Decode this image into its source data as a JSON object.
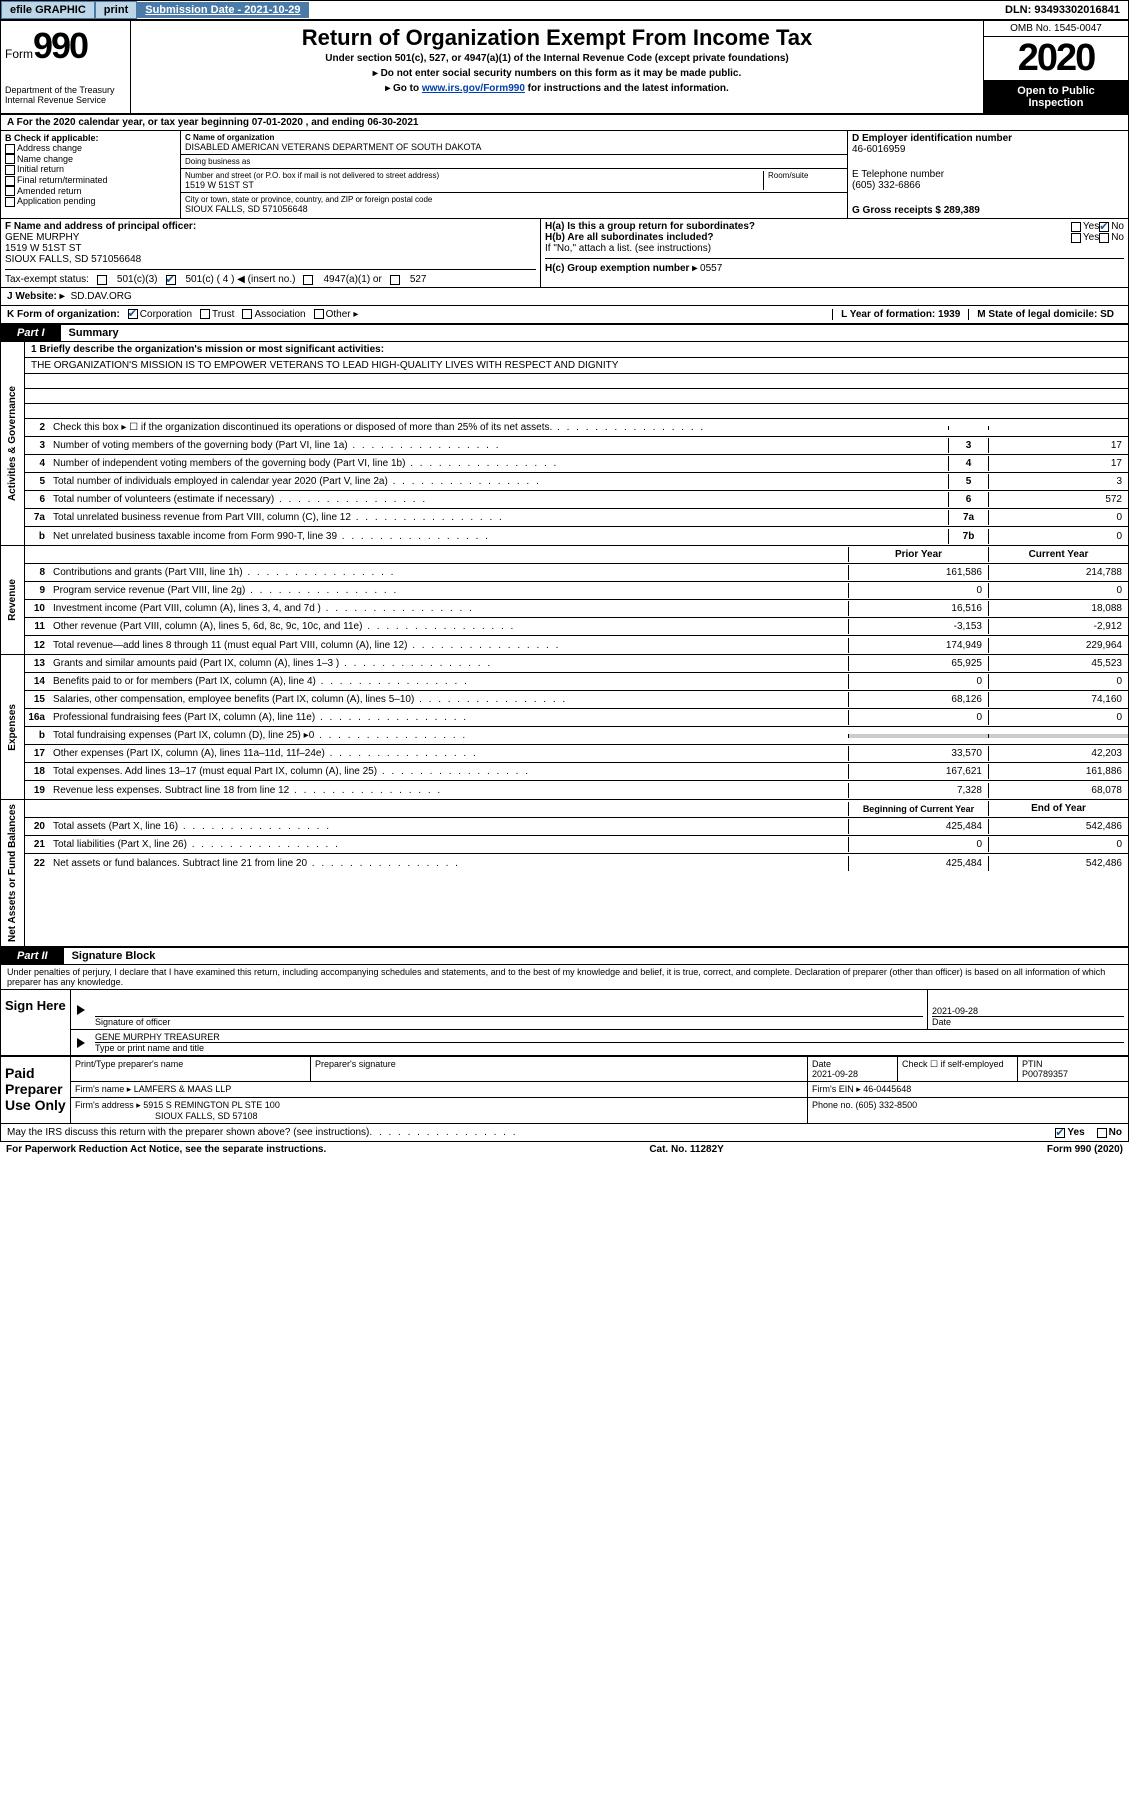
{
  "topbar": {
    "efile_label": "efile GRAPHIC",
    "print_label": "print",
    "submission_label": "Submission Date - 2021-10-29",
    "dln_label": "DLN: 93493302016841"
  },
  "header": {
    "form_word": "Form",
    "form_number": "990",
    "dept1": "Department of the Treasury",
    "dept2": "Internal Revenue Service",
    "main_title": "Return of Organization Exempt From Income Tax",
    "subtitle": "Under section 501(c), 527, or 4947(a)(1) of the Internal Revenue Code (except private foundations)",
    "notice1": "▸ Do not enter social security numbers on this form as it may be made public.",
    "notice2_prefix": "▸ Go to ",
    "notice2_link": "www.irs.gov/Form990",
    "notice2_suffix": " for instructions and the latest information.",
    "omb": "OMB No. 1545-0047",
    "year": "2020",
    "open_public1": "Open to Public",
    "open_public2": "Inspection"
  },
  "period": {
    "text": "A For the 2020 calendar year, or tax year beginning 07-01-2020    , and ending 06-30-2021"
  },
  "block_b": {
    "label": "B Check if applicable:",
    "items": [
      "Address change",
      "Name change",
      "Initial return",
      "Final return/terminated",
      "Amended return",
      "Application pending"
    ]
  },
  "block_c": {
    "name_label": "C Name of organization",
    "name_value": "DISABLED AMERICAN VETERANS DEPARTMENT OF SOUTH DAKOTA",
    "dba_label": "Doing business as",
    "street_label": "Number and street (or P.O. box if mail is not delivered to street address)",
    "street_value": "1519 W 51ST ST",
    "room_label": "Room/suite",
    "city_label": "City or town, state or province, country, and ZIP or foreign postal code",
    "city_value": "SIOUX FALLS, SD  571056648"
  },
  "block_d": {
    "ein_label": "D Employer identification number",
    "ein_value": "46-6016959",
    "phone_label": "E Telephone number",
    "phone_value": "(605) 332-6866",
    "gross_label": "G Gross receipts $ 289,389"
  },
  "block_f": {
    "label": "F  Name and address of principal officer:",
    "name": "GENE MURPHY",
    "addr1": "1519 W 51ST ST",
    "addr2": "SIOUX FALLS, SD  571056648"
  },
  "block_h": {
    "ha_label": "H(a)  Is this a group return for subordinates?",
    "hb_label": "H(b)  Are all subordinates included?",
    "hb_note": "If \"No,\" attach a list. (see instructions)",
    "hc_label": "H(c)  Group exemption number ▸",
    "hc_value": "0557"
  },
  "tax_status": {
    "label": "Tax-exempt status:",
    "opt1": "501(c)(3)",
    "opt2": "501(c) ( 4 ) ◀ (insert no.)",
    "opt3": "4947(a)(1) or",
    "opt4": "527"
  },
  "line_j": {
    "label": "J    Website: ▸",
    "value": "SD.DAV.ORG"
  },
  "line_k": {
    "label": "K Form of organization:",
    "opts": [
      "Corporation",
      "Trust",
      "Association",
      "Other ▸"
    ],
    "l_label": "L Year of formation: 1939",
    "m_label": "M State of legal domicile: SD"
  },
  "part1": {
    "label": "Part I",
    "title": "Summary"
  },
  "mission": {
    "q1": "1  Briefly describe the organization's mission or most significant activities:",
    "text": "THE ORGANIZATION'S MISSION IS TO EMPOWER VETERANS TO LEAD HIGH-QUALITY LIVES WITH RESPECT AND DIGNITY"
  },
  "gov_rows": [
    {
      "num": "2",
      "desc": "Check this box ▸ ☐  if the organization discontinued its operations or disposed of more than 25% of its net assets.",
      "box": "",
      "val": ""
    },
    {
      "num": "3",
      "desc": "Number of voting members of the governing body (Part VI, line 1a)",
      "box": "3",
      "val": "17"
    },
    {
      "num": "4",
      "desc": "Number of independent voting members of the governing body (Part VI, line 1b)",
      "box": "4",
      "val": "17"
    },
    {
      "num": "5",
      "desc": "Total number of individuals employed in calendar year 2020 (Part V, line 2a)",
      "box": "5",
      "val": "3"
    },
    {
      "num": "6",
      "desc": "Total number of volunteers (estimate if necessary)",
      "box": "6",
      "val": "572"
    },
    {
      "num": "7a",
      "desc": "Total unrelated business revenue from Part VIII, column (C), line 12",
      "box": "7a",
      "val": "0"
    },
    {
      "num": "b",
      "desc": "Net unrelated business taxable income from Form 990-T, line 39",
      "box": "7b",
      "val": "0"
    }
  ],
  "rev_header": {
    "prior": "Prior Year",
    "current": "Current Year"
  },
  "rev_rows": [
    {
      "num": "8",
      "desc": "Contributions and grants (Part VIII, line 1h)",
      "prior": "161,586",
      "current": "214,788"
    },
    {
      "num": "9",
      "desc": "Program service revenue (Part VIII, line 2g)",
      "prior": "0",
      "current": "0"
    },
    {
      "num": "10",
      "desc": "Investment income (Part VIII, column (A), lines 3, 4, and 7d )",
      "prior": "16,516",
      "current": "18,088"
    },
    {
      "num": "11",
      "desc": "Other revenue (Part VIII, column (A), lines 5, 6d, 8c, 9c, 10c, and 11e)",
      "prior": "-3,153",
      "current": "-2,912"
    },
    {
      "num": "12",
      "desc": "Total revenue—add lines 8 through 11 (must equal Part VIII, column (A), line 12)",
      "prior": "174,949",
      "current": "229,964"
    }
  ],
  "exp_rows": [
    {
      "num": "13",
      "desc": "Grants and similar amounts paid (Part IX, column (A), lines 1–3 )",
      "prior": "65,925",
      "current": "45,523"
    },
    {
      "num": "14",
      "desc": "Benefits paid to or for members (Part IX, column (A), line 4)",
      "prior": "0",
      "current": "0"
    },
    {
      "num": "15",
      "desc": "Salaries, other compensation, employee benefits (Part IX, column (A), lines 5–10)",
      "prior": "68,126",
      "current": "74,160"
    },
    {
      "num": "16a",
      "desc": "Professional fundraising fees (Part IX, column (A), line 11e)",
      "prior": "0",
      "current": "0"
    },
    {
      "num": "b",
      "desc": "Total fundraising expenses (Part IX, column (D), line 25) ▸0",
      "prior": "",
      "current": "",
      "grey": true
    },
    {
      "num": "17",
      "desc": "Other expenses (Part IX, column (A), lines 11a–11d, 11f–24e)",
      "prior": "33,570",
      "current": "42,203"
    },
    {
      "num": "18",
      "desc": "Total expenses. Add lines 13–17 (must equal Part IX, column (A), line 25)",
      "prior": "167,621",
      "current": "161,886"
    },
    {
      "num": "19",
      "desc": "Revenue less expenses. Subtract line 18 from line 12",
      "prior": "7,328",
      "current": "68,078"
    }
  ],
  "net_header": {
    "prior": "Beginning of Current Year",
    "current": "End of Year"
  },
  "net_rows": [
    {
      "num": "20",
      "desc": "Total assets (Part X, line 16)",
      "prior": "425,484",
      "current": "542,486"
    },
    {
      "num": "21",
      "desc": "Total liabilities (Part X, line 26)",
      "prior": "0",
      "current": "0"
    },
    {
      "num": "22",
      "desc": "Net assets or fund balances. Subtract line 21 from line 20",
      "prior": "425,484",
      "current": "542,486"
    }
  ],
  "part2": {
    "label": "Part II",
    "title": "Signature Block",
    "penalty": "Under penalties of perjury, I declare that I have examined this return, including accompanying schedules and statements, and to the best of my knowledge and belief, it is true, correct, and complete. Declaration of preparer (other than officer) is based on all information of which preparer has any knowledge."
  },
  "sign": {
    "left": "Sign Here",
    "sig_label": "Signature of officer",
    "date_label": "Date",
    "date_value": "2021-09-28",
    "name": "GENE MURPHY  TREASURER",
    "name_label": "Type or print name and title"
  },
  "preparer": {
    "left": "Paid Preparer Use Only",
    "print_label": "Print/Type preparer's name",
    "sig_label": "Preparer's signature",
    "date_label": "Date",
    "date_value": "2021-09-28",
    "self_label": "Check ☐ if self-employed",
    "ptin_label": "PTIN",
    "ptin_value": "P00789357",
    "firm_name_label": "Firm's name    ▸",
    "firm_name": "LAMFERS & MAAS LLP",
    "firm_ein_label": "Firm's EIN ▸",
    "firm_ein": "46-0445648",
    "firm_addr_label": "Firm's address ▸",
    "firm_addr1": "5915 S REMINGTON PL STE 100",
    "firm_addr2": "SIOUX FALLS, SD  57108",
    "phone_label": "Phone no. (605) 332-8500"
  },
  "discuss": {
    "text": "May the IRS discuss this return with the preparer shown above? (see instructions)"
  },
  "footer": {
    "left": "For Paperwork Reduction Act Notice, see the separate instructions.",
    "center": "Cat. No. 11282Y",
    "right": "Form 990 (2020)"
  },
  "vert_labels": {
    "gov": "Activities & Governance",
    "rev": "Revenue",
    "exp": "Expenses",
    "net": "Net Assets or Fund Balances"
  },
  "yesno": {
    "yes": "Yes",
    "no": "No"
  }
}
